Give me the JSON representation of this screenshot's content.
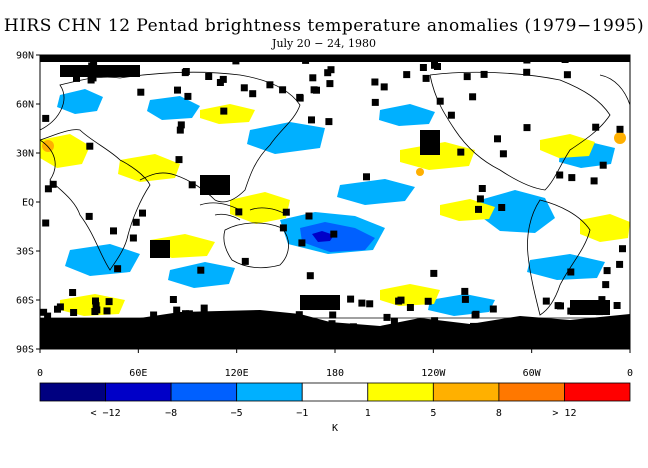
{
  "title": "HIRS CHN 12 Pentad brightness temperature anomalies (1979−1995)",
  "subtitle": "July 20 − 24, 1980",
  "map": {
    "lat_ticks": [
      "90N",
      "60N",
      "30N",
      "EQ",
      "30S",
      "60S",
      "90S"
    ],
    "lon_ticks": [
      "0",
      "60E",
      "120E",
      "180",
      "120W",
      "60W",
      "0"
    ],
    "legend_position": "bottom",
    "missing_color": "#000000"
  },
  "colorbar": {
    "unit": "K",
    "colors": [
      "#000080",
      "#0000c8",
      "#0060ff",
      "#00b0ff",
      "#ffffff",
      "#ffff00",
      "#ffb000",
      "#ff7800",
      "#ff0000"
    ],
    "labels": [
      "< −12",
      "−8",
      "−5",
      "−1",
      "1",
      "5",
      "8",
      "> 12"
    ]
  }
}
